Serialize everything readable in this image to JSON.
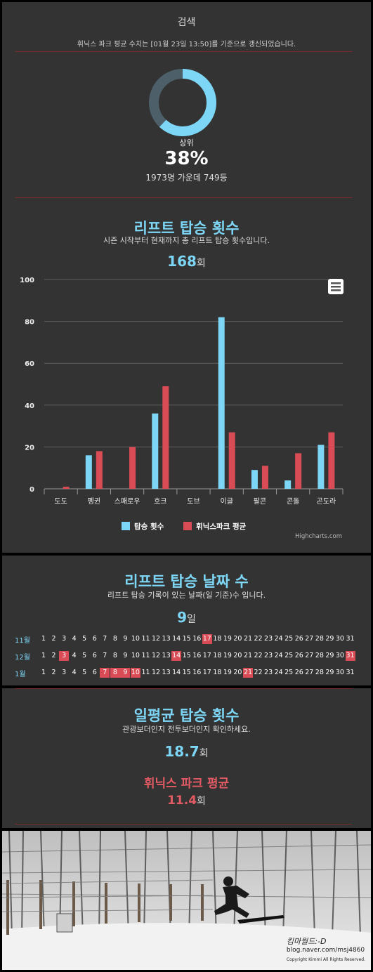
{
  "header": {
    "title": "검색",
    "notice": "휘닉스 파크 평균 수치는 [01월 23일 13:50]를 기준으로 갱신되었습니다."
  },
  "rank": {
    "label": "상위",
    "percent_text": "38%",
    "percent": 38,
    "subtitle": "1973명 가운데 749등"
  },
  "lift_rides": {
    "title": "리프트 탑승 횟수",
    "description": "시즌 시작부터 현재까지 총 리프트 탑승 횟수입니다.",
    "total": "168",
    "unit": "회",
    "credit": "Highcharts.com",
    "menu_icon": "hamburger-menu-icon"
  },
  "chart_data": {
    "type": "bar",
    "categories": [
      "도도",
      "펭귄",
      "스패로우",
      "호크",
      "도브",
      "이글",
      "팔콘",
      "콘돌",
      "곤도라"
    ],
    "series": [
      {
        "name": "탑승 횟수",
        "color": "#7dd6f5",
        "values": [
          0,
          16,
          0,
          36,
          0,
          82,
          9,
          4,
          21
        ]
      },
      {
        "name": "휘닉스파크 평균",
        "color": "#d94b55",
        "values": [
          1,
          18,
          20,
          49,
          0,
          27,
          11,
          17,
          27
        ]
      }
    ],
    "y_ticks": [
      0,
      20,
      40,
      60,
      80,
      100
    ],
    "ylim": [
      0,
      100
    ],
    "grid": true,
    "legend_position": "bottom"
  },
  "ride_days": {
    "title": "리프트 탑승 날짜 수",
    "description": "리프트 탑승 기록이 있는 날짜(일 기준)수 입니다.",
    "total": "9",
    "unit": "일",
    "months": [
      {
        "label": "11월",
        "days": 31,
        "hits": [
          17
        ]
      },
      {
        "label": "12월",
        "days": 31,
        "hits": [
          3,
          14,
          31
        ]
      },
      {
        "label": "1월",
        "days": 31,
        "hits": [
          7,
          8,
          9,
          10,
          21
        ]
      }
    ]
  },
  "daily_avg": {
    "title": "일평균 탑승 횟수",
    "description": "관광보더인지 전투보더인지 확인하세요.",
    "value": "18.7",
    "unit": "회",
    "park_title": "휘닉스 파크 평균",
    "park_value": "11.4",
    "park_unit": "회"
  },
  "photo": {
    "signature_line1": "킴마월드:-D",
    "signature_line2": "blog.naver.com/msj4860",
    "copyright": "Copyright Kimmi All Rights Reserved."
  }
}
